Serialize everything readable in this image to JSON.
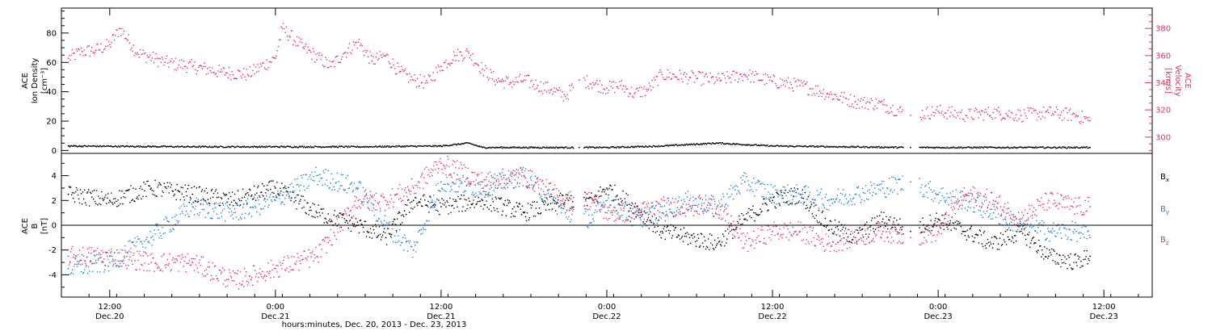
{
  "chart_data": [
    {
      "type": "scatter",
      "panel": "top",
      "y_left_label_lines": [
        "ACE",
        "Ion Density",
        "[cm⁻³]"
      ],
      "y_right_label_lines": [
        "ACE",
        "Velocity",
        "[km/s]"
      ],
      "ylim_left": [
        -2,
        97
      ],
      "ylim_right": [
        288,
        395
      ],
      "yticks_left": [
        0,
        20,
        40,
        60,
        80
      ],
      "yticks_right": [
        300,
        320,
        340,
        360,
        380
      ],
      "series": [
        {
          "axis": "right",
          "color": "#e8305c",
          "points": [
            [
              "2013-12-20T09:00",
              358
            ],
            [
              "2013-12-20T10:00",
              363
            ],
            [
              "2013-12-20T11:00",
              364
            ],
            [
              "2013-12-20T12:00",
              368
            ],
            [
              "2013-12-20T12:45",
              380
            ],
            [
              "2013-12-20T14:00",
              362
            ],
            [
              "2013-12-20T16:00",
              355
            ],
            [
              "2013-12-20T18:00",
              352
            ],
            [
              "2013-12-20T20:00",
              348
            ],
            [
              "2013-12-20T22:00",
              346
            ],
            [
              "2013-12-21T00:00",
              358
            ],
            [
              "2013-12-21T00:30",
              380
            ],
            [
              "2013-12-21T02:00",
              366
            ],
            [
              "2013-12-21T04:00",
              352
            ],
            [
              "2013-12-21T05:00",
              362
            ],
            [
              "2013-12-21T06:00",
              370
            ],
            [
              "2013-12-21T07:00",
              356
            ],
            [
              "2013-12-21T08:00",
              360
            ],
            [
              "2013-12-21T09:00",
              348
            ],
            [
              "2013-12-21T10:00",
              342
            ],
            [
              "2013-12-21T11:00",
              340
            ],
            [
              "2013-12-21T12:00",
              352
            ],
            [
              "2013-12-21T13:00",
              360
            ],
            [
              "2013-12-21T14:00",
              362
            ],
            [
              "2013-12-21T15:00",
              350
            ],
            [
              "2013-12-21T16:00",
              342
            ],
            [
              "2013-12-21T17:00",
              340
            ],
            [
              "2013-12-21T18:00",
              342
            ],
            [
              "2013-12-21T19:00",
              338
            ],
            [
              "2013-12-21T20:00",
              335
            ],
            [
              "2013-12-21T21:00",
              330
            ],
            [
              "2013-12-21T22:00",
              342
            ],
            [
              "2013-12-21T23:00",
              340
            ],
            [
              "2013-12-22T00:00",
              336
            ],
            [
              "2013-12-22T01:00",
              338
            ],
            [
              "2013-12-22T02:00",
              332
            ],
            [
              "2013-12-22T03:00",
              335
            ],
            [
              "2013-12-22T04:00",
              346
            ],
            [
              "2013-12-22T06:00",
              344
            ],
            [
              "2013-12-22T08:00",
              342
            ],
            [
              "2013-12-22T10:00",
              346
            ],
            [
              "2013-12-22T12:00",
              341
            ],
            [
              "2013-12-22T14:00",
              338
            ],
            [
              "2013-12-22T16:00",
              332
            ],
            [
              "2013-12-22T18:00",
              326
            ],
            [
              "2013-12-22T20:00",
              324
            ],
            [
              "2013-12-22T22:00",
              316
            ],
            [
              "2013-12-23T00:00",
              319
            ],
            [
              "2013-12-23T02:00",
              316
            ],
            [
              "2013-12-23T04:00",
              318
            ],
            [
              "2013-12-23T06:00",
              316
            ],
            [
              "2013-12-23T08:00",
              318
            ],
            [
              "2013-12-23T10:00",
              316
            ],
            [
              "2013-12-23T11:00",
              312
            ]
          ]
        },
        {
          "axis": "left",
          "color": "#000000",
          "points": [
            [
              "2013-12-20T09:00",
              3
            ],
            [
              "2013-12-20T18:00",
              2.5
            ],
            [
              "2013-12-21T06:00",
              2.5
            ],
            [
              "2013-12-21T12:00",
              3
            ],
            [
              "2013-12-21T14:00",
              5
            ],
            [
              "2013-12-21T15:00",
              2
            ],
            [
              "2013-12-21T22:00",
              2
            ],
            [
              "2013-12-22T00:00",
              2
            ],
            [
              "2013-12-22T04:00",
              3
            ],
            [
              "2013-12-22T08:00",
              5
            ],
            [
              "2013-12-22T12:00",
              3
            ],
            [
              "2013-12-22T22:00",
              2
            ],
            [
              "2013-12-23T00:00",
              2
            ],
            [
              "2013-12-23T11:00",
              2
            ]
          ]
        }
      ]
    },
    {
      "type": "scatter",
      "panel": "bottom",
      "y_label_lines": [
        "ACE",
        "B",
        "[nT]"
      ],
      "ylim": [
        -5.8,
        5.8
      ],
      "yticks": [
        -4,
        -2,
        0,
        2,
        4
      ],
      "legend_position": "right",
      "series": [
        {
          "name": "Bx",
          "name_base": "B",
          "name_sub": "x",
          "color": "#000000",
          "points": [
            [
              "2013-12-20T09:00",
              2.5
            ],
            [
              "2013-12-20T12:00",
              2.0
            ],
            [
              "2013-12-20T15:00",
              3.0
            ],
            [
              "2013-12-20T18:00",
              2.5
            ],
            [
              "2013-12-20T21:00",
              2.0
            ],
            [
              "2013-12-21T00:00",
              3.0
            ],
            [
              "2013-12-21T03:00",
              1.0
            ],
            [
              "2013-12-21T06:00",
              0.0
            ],
            [
              "2013-12-21T08:00",
              -1.0
            ],
            [
              "2013-12-21T10:00",
              2.0
            ],
            [
              "2013-12-21T12:00",
              1.5
            ],
            [
              "2013-12-21T15:00",
              2.0
            ],
            [
              "2013-12-21T18:00",
              1.0
            ],
            [
              "2013-12-21T21:00",
              2.0
            ],
            [
              "2013-12-21T23:00",
              2.0
            ],
            [
              "2013-12-22T00:00",
              3.0
            ],
            [
              "2013-12-22T02:00",
              1.5
            ],
            [
              "2013-12-22T04:00",
              -0.5
            ],
            [
              "2013-12-22T06:00",
              -1.0
            ],
            [
              "2013-12-22T08:00",
              -1.5
            ],
            [
              "2013-12-22T10:00",
              0.5
            ],
            [
              "2013-12-22T12:00",
              2.0
            ],
            [
              "2013-12-22T14:00",
              2.5
            ],
            [
              "2013-12-22T16:00",
              0.0
            ],
            [
              "2013-12-22T18:00",
              -1.0
            ],
            [
              "2013-12-22T20:00",
              0.5
            ],
            [
              "2013-12-22T22:00",
              -0.5
            ],
            [
              "2013-12-23T00:00",
              0.5
            ],
            [
              "2013-12-23T02:00",
              -0.5
            ],
            [
              "2013-12-23T04:00",
              -1.5
            ],
            [
              "2013-12-23T06:00",
              -0.5
            ],
            [
              "2013-12-23T08:00",
              -2.5
            ],
            [
              "2013-12-23T10:00",
              -3.0
            ],
            [
              "2013-12-23T11:00",
              -2.5
            ]
          ]
        },
        {
          "name": "By",
          "name_base": "B",
          "name_sub": "y",
          "color": "#1e7fe0",
          "points": [
            [
              "2013-12-20T09:00",
              -3.5
            ],
            [
              "2013-12-20T12:00",
              -3.0
            ],
            [
              "2013-12-20T15:00",
              -1.0
            ],
            [
              "2013-12-20T18:00",
              1.5
            ],
            [
              "2013-12-20T21:00",
              1.0
            ],
            [
              "2013-12-21T00:00",
              2.0
            ],
            [
              "2013-12-21T03:00",
              4.0
            ],
            [
              "2013-12-21T06:00",
              3.0
            ],
            [
              "2013-12-21T08:00",
              0.0
            ],
            [
              "2013-12-21T10:00",
              -2.0
            ],
            [
              "2013-12-21T12:00",
              3.5
            ],
            [
              "2013-12-21T15:00",
              3.0
            ],
            [
              "2013-12-21T18:00",
              4.0
            ],
            [
              "2013-12-21T21:00",
              1.0
            ],
            [
              "2013-12-21T23:00",
              0.5
            ],
            [
              "2013-12-22T00:00",
              2.0
            ],
            [
              "2013-12-22T02:00",
              0.5
            ],
            [
              "2013-12-22T04:00",
              1.0
            ],
            [
              "2013-12-22T06:00",
              2.0
            ],
            [
              "2013-12-22T08:00",
              1.5
            ],
            [
              "2013-12-22T10:00",
              3.5
            ],
            [
              "2013-12-22T12:00",
              2.5
            ],
            [
              "2013-12-22T14:00",
              2.5
            ],
            [
              "2013-12-22T16:00",
              2.0
            ],
            [
              "2013-12-22T18:00",
              2.5
            ],
            [
              "2013-12-22T20:00",
              3.0
            ],
            [
              "2013-12-22T22:00",
              3.5
            ],
            [
              "2013-12-23T00:00",
              2.5
            ],
            [
              "2013-12-23T02:00",
              2.0
            ],
            [
              "2013-12-23T04:00",
              1.0
            ],
            [
              "2013-12-23T06:00",
              0.0
            ],
            [
              "2013-12-23T08:00",
              -0.5
            ],
            [
              "2013-12-23T10:00",
              -0.5
            ],
            [
              "2013-12-23T11:00",
              -1.0
            ]
          ]
        },
        {
          "name": "Bz",
          "name_base": "B",
          "name_sub": "z",
          "color": "#e8305c",
          "points": [
            [
              "2013-12-20T09:00",
              -2.5
            ],
            [
              "2013-12-20T12:00",
              -2.5
            ],
            [
              "2013-12-20T15:00",
              -3.0
            ],
            [
              "2013-12-20T18:00",
              -3.0
            ],
            [
              "2013-12-20T21:00",
              -4.5
            ],
            [
              "2013-12-21T00:00",
              -3.5
            ],
            [
              "2013-12-21T03:00",
              -2.5
            ],
            [
              "2013-12-21T06:00",
              2.0
            ],
            [
              "2013-12-21T08:00",
              2.0
            ],
            [
              "2013-12-21T10:00",
              3.0
            ],
            [
              "2013-12-21T12:00",
              5.0
            ],
            [
              "2013-12-21T15:00",
              3.5
            ],
            [
              "2013-12-21T18:00",
              4.0
            ],
            [
              "2013-12-21T21:00",
              2.0
            ],
            [
              "2013-12-21T23:00",
              2.0
            ],
            [
              "2013-12-22T00:00",
              1.0
            ],
            [
              "2013-12-22T02:00",
              1.0
            ],
            [
              "2013-12-22T04:00",
              1.5
            ],
            [
              "2013-12-22T06:00",
              1.5
            ],
            [
              "2013-12-22T08:00",
              1.5
            ],
            [
              "2013-12-22T10:00",
              -1.5
            ],
            [
              "2013-12-22T12:00",
              -0.5
            ],
            [
              "2013-12-22T14:00",
              -0.5
            ],
            [
              "2013-12-22T16:00",
              -1.5
            ],
            [
              "2013-12-22T18:00",
              -1.0
            ],
            [
              "2013-12-22T20:00",
              -0.5
            ],
            [
              "2013-12-22T22:00",
              -1.0
            ],
            [
              "2013-12-23T00:00",
              -0.5
            ],
            [
              "2013-12-23T02:00",
              2.5
            ],
            [
              "2013-12-23T04:00",
              2.0
            ],
            [
              "2013-12-23T06:00",
              0.5
            ],
            [
              "2013-12-23T08:00",
              2.0
            ],
            [
              "2013-12-23T10:00",
              1.5
            ],
            [
              "2013-12-23T11:00",
              1.5
            ]
          ]
        }
      ]
    }
  ],
  "x_axis": {
    "range": [
      "2013-12-20T08:30",
      "2013-12-23T15:30"
    ],
    "title": "hours:minutes, Dec. 20, 2013 - Dec. 23, 2013",
    "ticks": [
      {
        "time": "2013-12-20T12:00",
        "label_time": "12:00",
        "label_date": "Dec.20"
      },
      {
        "time": "2013-12-21T00:00",
        "label_time": "0:00",
        "label_date": "Dec.21"
      },
      {
        "time": "2013-12-21T12:00",
        "label_time": "12:00",
        "label_date": "Dec.21"
      },
      {
        "time": "2013-12-22T00:00",
        "label_time": "0:00",
        "label_date": "Dec.22"
      },
      {
        "time": "2013-12-22T12:00",
        "label_time": "12:00",
        "label_date": "Dec.22"
      },
      {
        "time": "2013-12-23T00:00",
        "label_time": "0:00",
        "label_date": "Dec.23"
      },
      {
        "time": "2013-12-23T12:00",
        "label_time": "12:00",
        "label_date": "Dec.23"
      }
    ]
  }
}
